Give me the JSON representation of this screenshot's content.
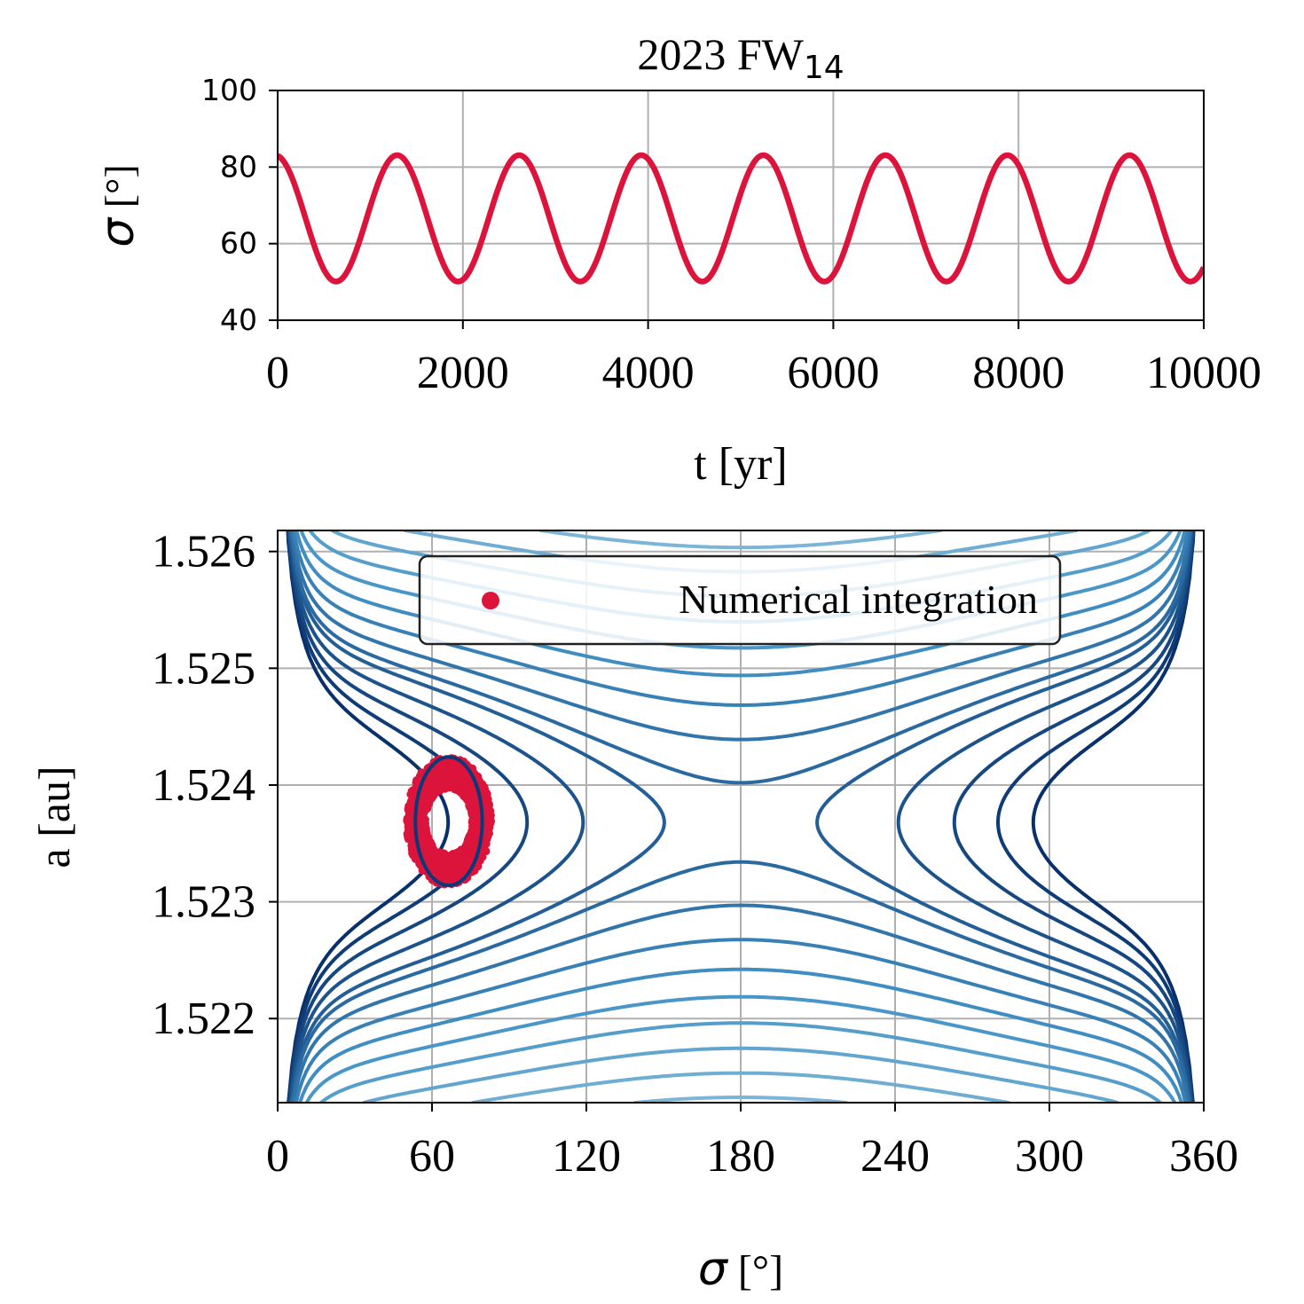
{
  "chart_data": [
    {
      "type": "line",
      "title_main": "2023 FW",
      "title_sub": "14",
      "xlabel": "t [yr]",
      "ylabel_symbol": "σ",
      "ylabel_unit": " [°]",
      "xlim": [
        0,
        10000
      ],
      "ylim": [
        40,
        100
      ],
      "xticks": [
        0,
        2000,
        4000,
        6000,
        8000,
        10000
      ],
      "yticks": [
        40,
        60,
        80,
        100
      ],
      "grid": true,
      "series": [
        {
          "color": "#dc143c",
          "model": "sinusoid",
          "mean": 66.6,
          "amplitude": 16.5,
          "period_yr": 1318,
          "t_max_first": 1290,
          "t": [
            0,
            640,
            1290,
            1960,
            2610,
            3270,
            3930,
            4590,
            5250,
            5910,
            6560,
            7220,
            7880,
            8550,
            9200,
            9860,
            10000
          ],
          "sigma": [
            82,
            50,
            83,
            50,
            83,
            50,
            83,
            50,
            83,
            50,
            83,
            50,
            83,
            50,
            83,
            50,
            55
          ]
        }
      ]
    },
    {
      "type": "scatter",
      "xlabel_symbol": "σ",
      "xlabel_unit": " [°]",
      "ylabel": "a [au]",
      "xlim": [
        0,
        360
      ],
      "ylim": [
        1.52128,
        1.52618
      ],
      "xticks": [
        0,
        60,
        120,
        180,
        240,
        300,
        360
      ],
      "yticks": [
        "1.522",
        "1.523",
        "1.524",
        "1.525",
        "1.526"
      ],
      "grid": true,
      "legend": {
        "placement": "top-center",
        "label": "Numerical integration"
      },
      "scatter_color": "#dc143c",
      "scatter_ring": {
        "center_sigma": 66.5,
        "center_a": 1.52369,
        "sigma_half_range": [
          9,
          16.5
        ],
        "a_half_range": [
          0.00028,
          0.00055
        ]
      },
      "background": {
        "type": "contour",
        "colormap": "Blues",
        "center_a": 1.52368,
        "equilibria_sigma": [
          66,
          298
        ],
        "saddle_sigma": 180,
        "separatrix_half_width_a": 0.0012
      }
    }
  ]
}
